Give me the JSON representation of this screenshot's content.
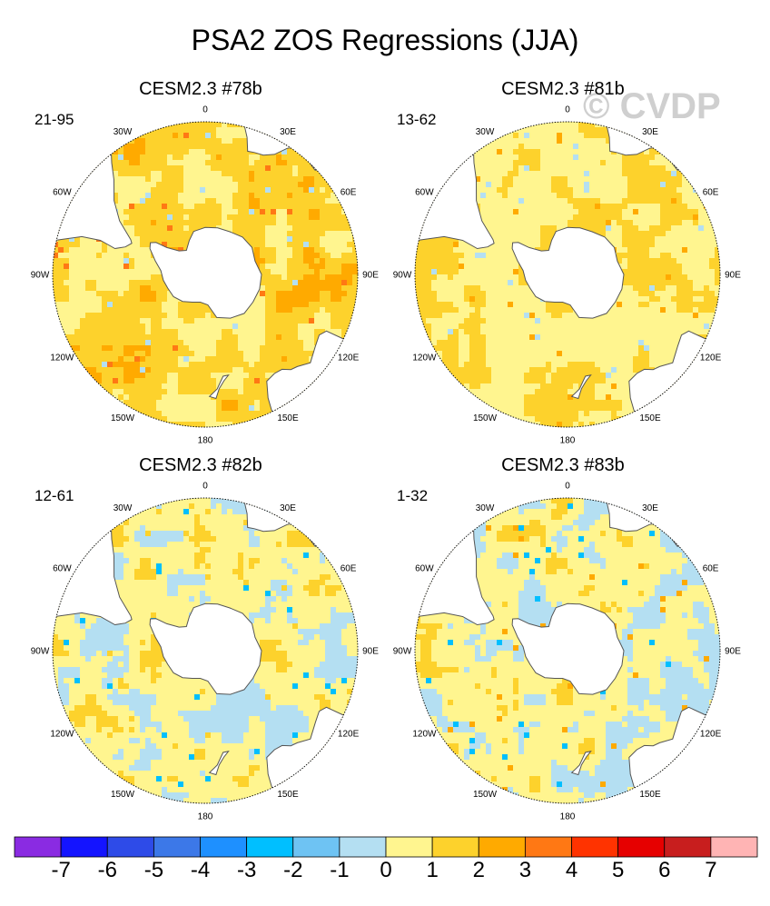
{
  "title": "PSA2 ZOS Regressions (JJA)",
  "watermark": "© CVDP",
  "lon_labels": [
    "0",
    "30E",
    "60E",
    "90E",
    "120E",
    "150E",
    "180",
    "150W",
    "120W",
    "90W",
    "60W",
    "30W"
  ],
  "chart_data": {
    "type": "heatmap",
    "projection": "south polar stereographic",
    "variable": "ZOS regression onto PSA2 index",
    "season": "JJA",
    "panels": [
      {
        "title": "CESM2.3 #78b",
        "years": "21-95",
        "dominant_range": [
          0,
          2
        ],
        "max_value": 4,
        "min_value": -1
      },
      {
        "title": "CESM2.3 #81b",
        "years": "13-62",
        "dominant_range": [
          0,
          1
        ],
        "max_value": 3,
        "min_value": -1
      },
      {
        "title": "CESM2.3 #82b",
        "years": "12-61",
        "dominant_range": [
          -1,
          1
        ],
        "max_value": 2,
        "min_value": -3
      },
      {
        "title": "CESM2.3 #83b",
        "years": "1-32",
        "dominant_range": [
          -1,
          1
        ],
        "max_value": 3,
        "min_value": -3
      }
    ],
    "colorbar": {
      "levels": [
        "-7",
        "-6",
        "-5",
        "-4",
        "-3",
        "-2",
        "-1",
        "0",
        "1",
        "2",
        "3",
        "4",
        "5",
        "6",
        "7"
      ],
      "colors": [
        "#8a2be2",
        "#1414ff",
        "#2e4be8",
        "#3c78e8",
        "#1e90ff",
        "#00bfff",
        "#6ec3f3",
        "#b4dff2",
        "#fff58f",
        "#fdd22c",
        "#ffaa00",
        "#ff7814",
        "#ff3300",
        "#e60000",
        "#c81e1e",
        "#ffb4b4"
      ]
    }
  }
}
